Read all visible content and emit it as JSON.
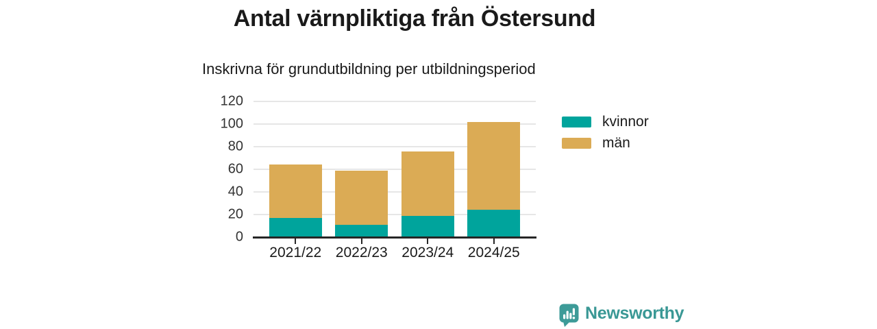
{
  "header": {
    "title": "Antal värnpliktiga från Östersund",
    "subtitle": "Inskrivna för grundutbildning per utbildningsperiod"
  },
  "chart_data": {
    "type": "bar",
    "stacked": true,
    "title": "Antal värnpliktiga från Östersund",
    "subtitle": "Inskrivna för grundutbildning per utbildningsperiod",
    "categories": [
      "2021/22",
      "2022/23",
      "2023/24",
      "2024/25"
    ],
    "series": [
      {
        "name": "kvinnor",
        "color": "#00a49c",
        "values": [
          17,
          11,
          19,
          24
        ]
      },
      {
        "name": "män",
        "color": "#dbab55",
        "values": [
          47,
          48,
          57,
          78
        ]
      }
    ],
    "stack_totals": [
      64,
      59,
      76,
      102
    ],
    "yticks": [
      0,
      20,
      40,
      60,
      80,
      100,
      120
    ],
    "ylim": [
      0,
      120
    ],
    "xlabel": "",
    "ylabel": "",
    "grid": true,
    "legend_position": "right"
  },
  "footer": {
    "brand": "Newsworthy"
  },
  "colors": {
    "kvinnor": "#00a49c",
    "man": "#dbab55",
    "brand_teal": "#3d9b98",
    "grid": "#e6e6e6",
    "axis": "#262626",
    "text": "#1a1a1a"
  }
}
